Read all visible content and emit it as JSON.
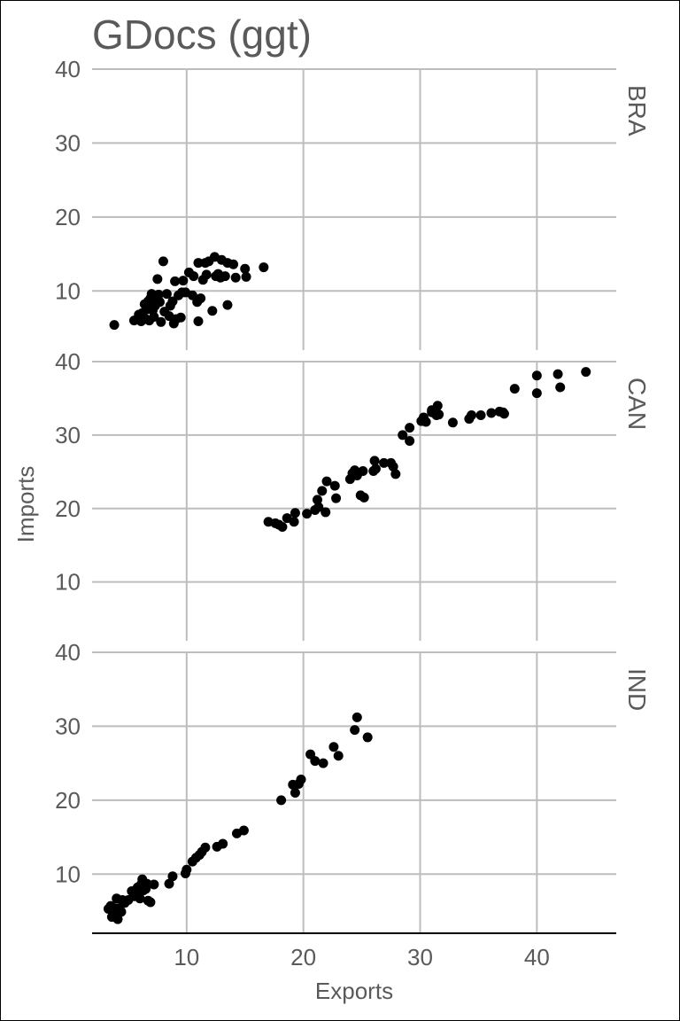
{
  "chart_data": {
    "type": "scatter",
    "title": "GDocs (ggt)",
    "xlabel": "Exports",
    "ylabel": "Imports",
    "xlim": [
      1.9,
      46.8
    ],
    "ylim": [
      2,
      40
    ],
    "x_ticks": [
      10,
      20,
      30,
      40
    ],
    "y_ticks": [
      10,
      20,
      30,
      40
    ],
    "grid": true,
    "legend": "none",
    "facets": [
      {
        "name": "BRA",
        "points": [
          [
            3.8,
            5.4
          ],
          [
            5.5,
            6.0
          ],
          [
            5.9,
            6.8
          ],
          [
            6.1,
            5.9
          ],
          [
            6.2,
            7.0
          ],
          [
            6.4,
            8.2
          ],
          [
            6.5,
            6.2
          ],
          [
            6.6,
            7.5
          ],
          [
            6.7,
            8.6
          ],
          [
            6.8,
            6.0
          ],
          [
            6.9,
            9.0
          ],
          [
            7.0,
            9.6
          ],
          [
            7.1,
            7.4
          ],
          [
            7.2,
            6.5
          ],
          [
            7.3,
            8.0
          ],
          [
            7.4,
            8.5
          ],
          [
            7.5,
            11.6
          ],
          [
            7.6,
            9.5
          ],
          [
            7.7,
            8.5
          ],
          [
            7.8,
            5.8
          ],
          [
            8.0,
            14.0
          ],
          [
            8.1,
            7.2
          ],
          [
            8.3,
            9.6
          ],
          [
            8.5,
            6.6
          ],
          [
            8.6,
            8.0
          ],
          [
            8.8,
            8.6
          ],
          [
            8.9,
            5.6
          ],
          [
            9.0,
            11.3
          ],
          [
            9.1,
            6.2
          ],
          [
            9.3,
            9.4
          ],
          [
            9.5,
            6.4
          ],
          [
            9.6,
            9.8
          ],
          [
            9.7,
            11.4
          ],
          [
            9.9,
            9.8
          ],
          [
            10.2,
            12.5
          ],
          [
            10.5,
            9.4
          ],
          [
            10.6,
            12.0
          ],
          [
            10.9,
            8.5
          ],
          [
            11.0,
            13.8
          ],
          [
            11.0,
            5.9
          ],
          [
            11.2,
            9.0
          ],
          [
            11.4,
            11.5
          ],
          [
            11.6,
            13.8
          ],
          [
            11.7,
            12.2
          ],
          [
            11.9,
            14.0
          ],
          [
            12.2,
            7.3
          ],
          [
            12.4,
            14.6
          ],
          [
            12.5,
            12.0
          ],
          [
            12.7,
            12.3
          ],
          [
            12.9,
            11.8
          ],
          [
            13.0,
            14.2
          ],
          [
            13.3,
            12.0
          ],
          [
            13.5,
            13.8
          ],
          [
            13.5,
            8.1
          ],
          [
            14.0,
            13.6
          ],
          [
            14.2,
            11.8
          ],
          [
            15.0,
            13.0
          ],
          [
            15.1,
            11.9
          ],
          [
            16.6,
            13.2
          ]
        ]
      },
      {
        "name": "CAN",
        "points": [
          [
            17.0,
            18.2
          ],
          [
            17.6,
            18.0
          ],
          [
            17.9,
            17.8
          ],
          [
            18.2,
            17.5
          ],
          [
            18.6,
            18.7
          ],
          [
            19.2,
            18.2
          ],
          [
            19.3,
            19.4
          ],
          [
            20.3,
            19.3
          ],
          [
            21.0,
            19.8
          ],
          [
            21.2,
            21.2
          ],
          [
            21.3,
            20.2
          ],
          [
            21.6,
            22.4
          ],
          [
            21.9,
            19.5
          ],
          [
            22.0,
            23.7
          ],
          [
            22.7,
            23.1
          ],
          [
            22.8,
            21.4
          ],
          [
            24.0,
            24.0
          ],
          [
            24.2,
            24.8
          ],
          [
            24.4,
            25.2
          ],
          [
            24.6,
            24.5
          ],
          [
            24.9,
            21.8
          ],
          [
            25.1,
            25.1
          ],
          [
            25.2,
            21.5
          ],
          [
            26.0,
            25.1
          ],
          [
            26.1,
            26.5
          ],
          [
            26.2,
            25.4
          ],
          [
            26.9,
            26.2
          ],
          [
            27.5,
            26.2
          ],
          [
            27.7,
            25.7
          ],
          [
            27.9,
            24.7
          ],
          [
            28.5,
            30.0
          ],
          [
            29.1,
            29.2
          ],
          [
            29.1,
            31.0
          ],
          [
            30.1,
            31.9
          ],
          [
            30.3,
            32.4
          ],
          [
            30.5,
            31.8
          ],
          [
            31.0,
            33.1
          ],
          [
            31.0,
            33.4
          ],
          [
            31.4,
            32.7
          ],
          [
            31.5,
            34.0
          ],
          [
            31.6,
            32.8
          ],
          [
            32.8,
            31.7
          ],
          [
            34.2,
            32.2
          ],
          [
            34.4,
            32.7
          ],
          [
            35.2,
            32.7
          ],
          [
            36.1,
            33.0
          ],
          [
            36.8,
            33.2
          ],
          [
            37.1,
            33.1
          ],
          [
            37.2,
            32.9
          ],
          [
            38.1,
            36.3
          ],
          [
            40.0,
            38.1
          ],
          [
            40.0,
            35.7
          ],
          [
            41.8,
            38.3
          ],
          [
            42.0,
            36.5
          ],
          [
            44.2,
            38.6
          ]
        ]
      },
      {
        "name": "IND",
        "points": [
          [
            3.3,
            5.3
          ],
          [
            3.5,
            5.7
          ],
          [
            3.6,
            4.2
          ],
          [
            3.7,
            4.5
          ],
          [
            3.8,
            5.4
          ],
          [
            3.9,
            4.6
          ],
          [
            4.0,
            6.7
          ],
          [
            4.1,
            3.9
          ],
          [
            4.2,
            5.4
          ],
          [
            4.4,
            4.9
          ],
          [
            4.5,
            6.5
          ],
          [
            4.7,
            6.1
          ],
          [
            5.0,
            6.5
          ],
          [
            5.3,
            7.7
          ],
          [
            5.5,
            7.0
          ],
          [
            5.7,
            7.3
          ],
          [
            5.8,
            8.2
          ],
          [
            6.0,
            6.7
          ],
          [
            6.1,
            8.6
          ],
          [
            6.2,
            9.3
          ],
          [
            6.3,
            7.8
          ],
          [
            6.5,
            8.0
          ],
          [
            6.6,
            8.7
          ],
          [
            6.7,
            6.4
          ],
          [
            6.9,
            6.2
          ],
          [
            7.2,
            8.6
          ],
          [
            8.5,
            8.7
          ],
          [
            8.8,
            9.7
          ],
          [
            9.9,
            10.1
          ],
          [
            10.0,
            10.6
          ],
          [
            10.5,
            11.7
          ],
          [
            10.8,
            12.2
          ],
          [
            11.1,
            12.6
          ],
          [
            11.3,
            13.0
          ],
          [
            11.6,
            13.6
          ],
          [
            12.6,
            13.7
          ],
          [
            13.1,
            14.1
          ],
          [
            14.3,
            15.5
          ],
          [
            14.9,
            15.9
          ],
          [
            18.1,
            20.0
          ],
          [
            19.1,
            22.1
          ],
          [
            19.3,
            21.0
          ],
          [
            19.6,
            22.2
          ],
          [
            19.8,
            22.8
          ],
          [
            20.6,
            26.2
          ],
          [
            21.0,
            25.3
          ],
          [
            21.7,
            25.0
          ],
          [
            22.6,
            27.2
          ],
          [
            23.0,
            26.0
          ],
          [
            24.4,
            29.5
          ],
          [
            24.6,
            31.2
          ],
          [
            25.5,
            28.5
          ]
        ]
      }
    ]
  }
}
